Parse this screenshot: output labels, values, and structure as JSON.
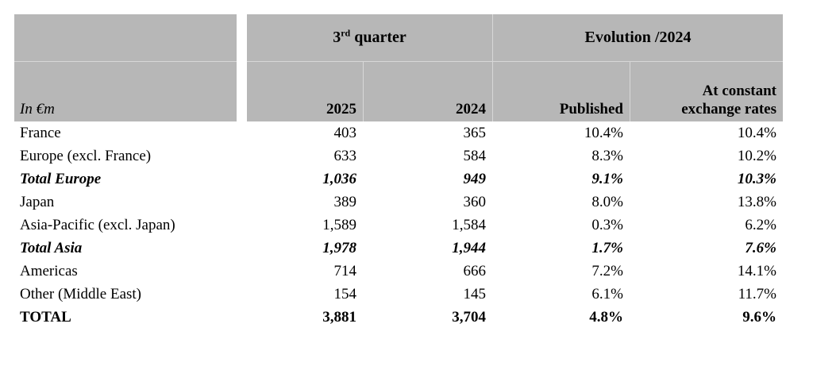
{
  "colors": {
    "header_bg": "#b7b7b7",
    "divider_line": "#d8d8d8",
    "text": "#000000"
  },
  "header": {
    "unit_label": "In €m",
    "group_quarter": {
      "num": "3",
      "sup": "rd",
      "rest": " quarter"
    },
    "group_evolution": "Evolution /2024",
    "col_2025": "2025",
    "col_2024": "2024",
    "col_published": "Published",
    "col_constant_line1": "At constant",
    "col_constant_line2": "exchange rates"
  },
  "rows": [
    {
      "label": "France",
      "y2025": "403",
      "y2024": "365",
      "published": "10.4%",
      "constant": "10.4%"
    },
    {
      "label": "Europe (excl. France)",
      "y2025": "633",
      "y2024": "584",
      "published": "8.3%",
      "constant": "10.2%"
    },
    {
      "label": "Total Europe",
      "y2025": "1,036",
      "y2024": "949",
      "published": "9.1%",
      "constant": "10.3%"
    },
    {
      "label": "Japan",
      "y2025": "389",
      "y2024": "360",
      "published": "8.0%",
      "constant": "13.8%"
    },
    {
      "label": "Asia-Pacific (excl. Japan)",
      "y2025": "1,589",
      "y2024": "1,584",
      "published": "0.3%",
      "constant": "6.2%"
    },
    {
      "label": "Total Asia",
      "y2025": "1,978",
      "y2024": "1,944",
      "published": "1.7%",
      "constant": "7.6%"
    },
    {
      "label": "Americas",
      "y2025": "714",
      "y2024": "666",
      "published": "7.2%",
      "constant": "14.1%"
    },
    {
      "label": "Other (Middle East)",
      "y2025": "154",
      "y2024": "145",
      "published": "6.1%",
      "constant": "11.7%"
    },
    {
      "label": "TOTAL",
      "y2025": "3,881",
      "y2024": "3,704",
      "published": "4.8%",
      "constant": "9.6%"
    }
  ]
}
